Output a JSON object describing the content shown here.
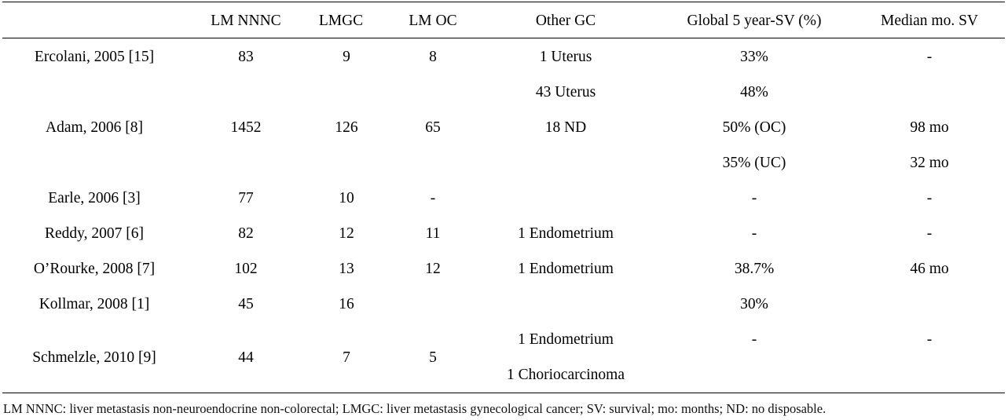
{
  "table": {
    "headers": [
      "",
      "LM NNNC",
      "LMGC",
      "LM OC",
      "Other GC",
      "Global 5 year-SV (%)",
      "Median mo. SV"
    ],
    "rows": [
      {
        "study": "Ercolani, 2005 [15]",
        "lm_nnnc": "83",
        "lmgc": "9",
        "lm_oc": "8",
        "other_gc": [
          "1 Uterus"
        ],
        "global_5yr_sv": [
          "33%"
        ],
        "median_sv": [
          "-"
        ]
      },
      {
        "study": "Adam, 2006 [8]",
        "lm_nnnc": "1452",
        "lmgc": "126",
        "lm_oc": "65",
        "other_gc": [
          "43 Uterus",
          "18 ND"
        ],
        "global_5yr_sv": [
          "48%",
          "50% (OC)",
          "35% (UC)"
        ],
        "median_sv": [
          "98 mo",
          "32 mo"
        ]
      },
      {
        "study": "Earle, 2006 [3]",
        "lm_nnnc": "77",
        "lmgc": "10",
        "lm_oc": "-",
        "other_gc": [],
        "global_5yr_sv": [
          "-"
        ],
        "median_sv": [
          "-"
        ]
      },
      {
        "study": "Reddy, 2007 [6]",
        "lm_nnnc": "82",
        "lmgc": "12",
        "lm_oc": "11",
        "other_gc": [
          "1 Endometrium"
        ],
        "global_5yr_sv": [
          "-"
        ],
        "median_sv": [
          "-"
        ]
      },
      {
        "study": "O’Rourke, 2008 [7]",
        "lm_nnnc": "102",
        "lmgc": "13",
        "lm_oc": "12",
        "other_gc": [
          "1 Endometrium"
        ],
        "global_5yr_sv": [
          "38.7%"
        ],
        "median_sv": [
          "46 mo"
        ]
      },
      {
        "study": "Kollmar, 2008 [1]",
        "lm_nnnc": "45",
        "lmgc": "16",
        "lm_oc": "",
        "other_gc": [],
        "global_5yr_sv": [
          "30%"
        ],
        "median_sv": []
      },
      {
        "study": "Schmelzle, 2010 [9]",
        "lm_nnnc": "44",
        "lmgc": "7",
        "lm_oc": "5",
        "other_gc": [
          "1 Endometrium",
          "1 Choriocarcinoma"
        ],
        "global_5yr_sv": [
          "-"
        ],
        "median_sv": [
          "-"
        ]
      }
    ],
    "footnote": "LM NNNC: liver metastasis non-neuroendocrine non-colorectal; LMGC: liver metastasis gynecological cancer; SV: survival; mo: months; ND: no disposable."
  }
}
